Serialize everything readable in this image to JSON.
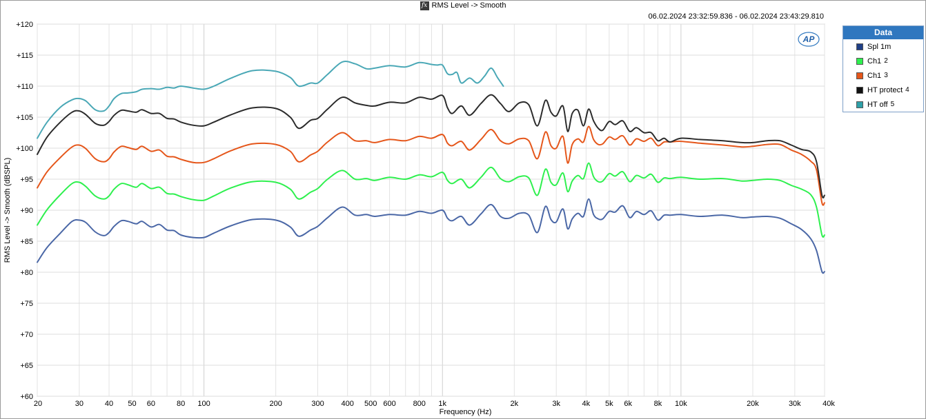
{
  "window": {
    "title": "RMS Level -> Smooth",
    "time_range": "06.02.2024 23:32:59.836 - 06.02.2024 23:43:29.810",
    "logo": "AP"
  },
  "legend": {
    "header": "Data",
    "items": [
      {
        "name": "Spl 1m",
        "num": "",
        "color": "#1f3f86"
      },
      {
        "name": "Ch1",
        "num": "2",
        "color": "#2ef04e"
      },
      {
        "name": "Ch1",
        "num": "3",
        "color": "#e5561a"
      },
      {
        "name": "HT protect",
        "num": "4",
        "color": "#111111"
      },
      {
        "name": "HT off",
        "num": "5",
        "color": "#2ea0a8"
      }
    ]
  },
  "chart_data": {
    "type": "line",
    "title": "RMS Level -> Smooth",
    "xlabel": "Frequency (Hz)",
    "ylabel": "RMS Level -> Smooth (dBSPL)",
    "x_scale": "log",
    "xlim": [
      20,
      40000
    ],
    "ylim": [
      60,
      120
    ],
    "grid": true,
    "legend_position": "right",
    "y_ticks": [
      "+60",
      "+65",
      "+70",
      "+75",
      "+80",
      "+85",
      "+90",
      "+95",
      "+100",
      "+105",
      "+110",
      "+115",
      "+120"
    ],
    "x_ticks": [
      {
        "v": 20,
        "label": "20"
      },
      {
        "v": 30,
        "label": "30"
      },
      {
        "v": 40,
        "label": "40"
      },
      {
        "v": 50,
        "label": "50"
      },
      {
        "v": 60,
        "label": "60"
      },
      {
        "v": 80,
        "label": "80"
      },
      {
        "v": 100,
        "label": "100"
      },
      {
        "v": 200,
        "label": "200"
      },
      {
        "v": 300,
        "label": "300"
      },
      {
        "v": 400,
        "label": "400"
      },
      {
        "v": 500,
        "label": "500"
      },
      {
        "v": 600,
        "label": "600"
      },
      {
        "v": 800,
        "label": "800"
      },
      {
        "v": 1000,
        "label": "1k"
      },
      {
        "v": 2000,
        "label": "2k"
      },
      {
        "v": 3000,
        "label": "3k"
      },
      {
        "v": 4000,
        "label": "4k"
      },
      {
        "v": 5000,
        "label": "5k"
      },
      {
        "v": 6000,
        "label": "6k"
      },
      {
        "v": 8000,
        "label": "8k"
      },
      {
        "v": 10000,
        "label": "10k"
      },
      {
        "v": 20000,
        "label": "20k"
      },
      {
        "v": 30000,
        "label": "30k"
      },
      {
        "v": 40000,
        "label": "40k"
      }
    ],
    "series": [
      {
        "name": "Spl 1m",
        "color": "#4a67a6",
        "x": [
          20,
          22,
          25,
          28,
          30,
          32,
          35,
          38,
          40,
          42,
          45,
          48,
          52,
          55,
          60,
          65,
          70,
          75,
          80,
          90,
          100,
          110,
          130,
          160,
          200,
          230,
          250,
          280,
          300,
          330,
          380,
          430,
          480,
          520,
          600,
          700,
          800,
          900,
          1000,
          1050,
          1100,
          1200,
          1300,
          1450,
          1600,
          1750,
          1900,
          2100,
          2300,
          2500,
          2700,
          2850,
          3000,
          3200,
          3350,
          3500,
          3700,
          3900,
          4100,
          4300,
          4500,
          4700,
          5000,
          5300,
          5700,
          6100,
          6500,
          7000,
          7500,
          8000,
          8500,
          9000,
          10000,
          12000,
          15000,
          18000,
          20000,
          23000,
          26000,
          29000,
          32000,
          35000,
          37000,
          39000,
          40000
        ],
        "y": [
          81.6,
          84.0,
          86.3,
          88.2,
          88.4,
          88.0,
          86.5,
          85.9,
          86.4,
          87.4,
          88.3,
          88.2,
          87.8,
          88.2,
          87.3,
          87.7,
          86.8,
          86.7,
          86.0,
          85.6,
          85.6,
          86.3,
          87.5,
          88.5,
          88.4,
          87.3,
          85.8,
          86.8,
          87.4,
          88.8,
          90.5,
          89.2,
          89.3,
          89.0,
          89.3,
          89.2,
          89.8,
          89.5,
          90.0,
          88.7,
          88.3,
          89.0,
          87.6,
          89.4,
          90.9,
          89.0,
          88.7,
          89.5,
          89.2,
          86.4,
          90.6,
          88.5,
          88.1,
          90.2,
          87.0,
          88.6,
          89.5,
          89.0,
          91.8,
          89.3,
          88.6,
          88.6,
          89.8,
          89.7,
          90.7,
          88.8,
          89.8,
          89.3,
          89.9,
          88.4,
          89.2,
          89.2,
          89.3,
          89.0,
          89.2,
          88.8,
          88.9,
          89.0,
          88.7,
          87.8,
          86.9,
          85.4,
          83.5,
          80.1,
          80.1
        ]
      },
      {
        "name": "Ch1 2",
        "color": "#2ef04e",
        "x": [
          20,
          22,
          25,
          28,
          30,
          32,
          35,
          38,
          40,
          42,
          45,
          48,
          52,
          55,
          60,
          65,
          70,
          75,
          80,
          90,
          100,
          110,
          130,
          160,
          200,
          230,
          250,
          280,
          300,
          330,
          380,
          430,
          480,
          520,
          600,
          700,
          800,
          900,
          1000,
          1050,
          1100,
          1200,
          1300,
          1450,
          1600,
          1750,
          1900,
          2100,
          2300,
          2500,
          2700,
          2850,
          3000,
          3200,
          3350,
          3500,
          3700,
          3900,
          4100,
          4300,
          4500,
          4700,
          5000,
          5300,
          5700,
          6100,
          6500,
          7000,
          7500,
          8000,
          8500,
          9000,
          10000,
          12000,
          15000,
          18000,
          20000,
          23000,
          26000,
          29000,
          32000,
          35000,
          37000,
          39000,
          40000
        ],
        "y": [
          87.6,
          90.1,
          92.5,
          94.3,
          94.5,
          93.8,
          92.3,
          91.8,
          92.3,
          93.4,
          94.3,
          94.1,
          93.7,
          94.3,
          93.5,
          93.7,
          92.7,
          92.6,
          92.2,
          91.7,
          91.6,
          92.3,
          93.6,
          94.6,
          94.5,
          93.4,
          91.8,
          92.9,
          93.5,
          95.0,
          96.4,
          95.0,
          95.1,
          94.8,
          95.3,
          95.0,
          95.7,
          95.4,
          96.1,
          94.8,
          94.3,
          95.0,
          93.6,
          95.3,
          96.9,
          95.1,
          94.6,
          95.4,
          95.2,
          92.4,
          96.6,
          94.5,
          94.1,
          96.0,
          93.0,
          94.7,
          95.6,
          95.1,
          97.6,
          95.4,
          94.6,
          94.7,
          95.9,
          95.5,
          96.2,
          94.6,
          95.6,
          95.2,
          95.8,
          94.5,
          95.2,
          95.1,
          95.3,
          95.0,
          95.1,
          94.7,
          94.8,
          95.0,
          94.8,
          94.0,
          93.4,
          92.5,
          90.5,
          86.0,
          86.0
        ]
      },
      {
        "name": "Ch1 3",
        "color": "#e5561a",
        "x": [
          20,
          22,
          25,
          28,
          30,
          32,
          35,
          38,
          40,
          42,
          45,
          48,
          52,
          55,
          60,
          65,
          70,
          75,
          80,
          90,
          100,
          110,
          130,
          160,
          200,
          230,
          250,
          280,
          300,
          330,
          380,
          430,
          480,
          520,
          600,
          700,
          800,
          900,
          1000,
          1050,
          1100,
          1200,
          1300,
          1450,
          1600,
          1750,
          1900,
          2100,
          2300,
          2500,
          2700,
          2850,
          3000,
          3200,
          3350,
          3500,
          3700,
          3900,
          4100,
          4300,
          4500,
          4700,
          5000,
          5300,
          5700,
          6100,
          6500,
          7000,
          7500,
          8000,
          8500,
          9000,
          10000,
          12000,
          15000,
          18000,
          20000,
          23000,
          26000,
          29000,
          32000,
          35000,
          37000,
          39000,
          40000
        ],
        "y": [
          93.6,
          96.2,
          98.5,
          100.2,
          100.5,
          99.9,
          98.3,
          97.8,
          98.3,
          99.4,
          100.3,
          100.1,
          99.8,
          100.3,
          99.5,
          99.7,
          98.7,
          98.6,
          98.2,
          97.7,
          97.7,
          98.3,
          99.6,
          100.7,
          100.6,
          99.5,
          97.8,
          98.9,
          99.5,
          101.0,
          102.5,
          101.2,
          101.2,
          100.9,
          101.4,
          101.2,
          101.9,
          101.6,
          102.2,
          100.8,
          100.4,
          101.1,
          99.7,
          101.4,
          103.0,
          101.2,
          100.7,
          101.5,
          101.2,
          98.3,
          102.6,
          100.4,
          100.0,
          101.9,
          97.6,
          100.6,
          101.5,
          101.0,
          103.5,
          101.4,
          100.6,
          100.7,
          101.8,
          101.4,
          102.0,
          100.5,
          101.5,
          101.1,
          101.6,
          100.4,
          101.0,
          101.0,
          101.1,
          100.8,
          100.5,
          100.2,
          100.3,
          100.6,
          100.6,
          99.7,
          99.0,
          97.9,
          96.5,
          91.2,
          91.2
        ]
      },
      {
        "name": "HT protect 4",
        "color": "#2b2b2b",
        "x": [
          20,
          22,
          25,
          28,
          30,
          32,
          35,
          38,
          40,
          42,
          45,
          48,
          52,
          55,
          60,
          65,
          70,
          75,
          80,
          90,
          100,
          110,
          130,
          160,
          200,
          230,
          250,
          280,
          300,
          330,
          380,
          430,
          480,
          520,
          600,
          700,
          800,
          900,
          1000,
          1050,
          1100,
          1200,
          1300,
          1450,
          1600,
          1750,
          1900,
          2100,
          2300,
          2500,
          2700,
          2850,
          3000,
          3200,
          3350,
          3500,
          3700,
          3900,
          4100,
          4300,
          4500,
          4700,
          5000,
          5300,
          5700,
          6100,
          6500,
          7000,
          7500,
          8000,
          8500,
          9000,
          10000,
          12000,
          15000,
          18000,
          20000,
          23000,
          26000,
          29000,
          32000,
          35000,
          37000,
          39000,
          40000
        ],
        "y": [
          99.0,
          101.8,
          104.2,
          105.8,
          106.0,
          105.4,
          104.0,
          103.7,
          104.3,
          105.3,
          106.1,
          106.0,
          105.8,
          106.2,
          105.6,
          105.6,
          104.8,
          104.7,
          104.2,
          103.7,
          103.6,
          104.2,
          105.4,
          106.5,
          106.4,
          105.0,
          103.2,
          104.5,
          104.8,
          106.3,
          108.2,
          107.3,
          106.9,
          106.8,
          107.4,
          107.3,
          108.2,
          107.9,
          108.5,
          106.5,
          105.6,
          106.8,
          105.3,
          107.2,
          108.6,
          107.2,
          105.9,
          107.3,
          107.0,
          103.6,
          107.7,
          105.8,
          105.2,
          106.8,
          102.7,
          105.6,
          106.1,
          103.6,
          106.3,
          104.4,
          103.2,
          102.9,
          104.3,
          103.8,
          104.4,
          102.7,
          103.3,
          102.5,
          102.5,
          101.2,
          101.6,
          101.0,
          101.6,
          101.4,
          101.2,
          100.9,
          100.9,
          101.2,
          101.2,
          100.5,
          99.8,
          99.4,
          97.8,
          92.4,
          92.4
        ]
      },
      {
        "name": "HT off 5",
        "color": "#4aa8b6",
        "x": [
          20,
          22,
          25,
          28,
          30,
          32,
          35,
          38,
          40,
          42,
          45,
          48,
          52,
          55,
          60,
          65,
          70,
          75,
          80,
          90,
          100,
          110,
          130,
          160,
          200,
          230,
          250,
          280,
          300,
          330,
          380,
          430,
          480,
          520,
          600,
          700,
          800,
          900,
          950,
          1000,
          1050,
          1100,
          1150,
          1200,
          1300,
          1400,
          1500,
          1600,
          1700,
          1800
        ],
        "y": [
          101.6,
          104.2,
          106.6,
          107.8,
          108.0,
          107.6,
          106.2,
          106.0,
          106.8,
          108.0,
          108.8,
          108.9,
          109.1,
          109.5,
          109.6,
          109.5,
          109.8,
          109.7,
          110.0,
          109.7,
          109.5,
          110.0,
          111.3,
          112.5,
          112.4,
          111.4,
          110.0,
          110.5,
          110.5,
          111.9,
          113.9,
          113.6,
          112.8,
          112.9,
          113.3,
          113.1,
          113.8,
          113.5,
          113.4,
          113.4,
          112.0,
          111.9,
          112.2,
          110.5,
          111.3,
          110.5,
          111.6,
          112.9,
          111.4,
          110.0
        ]
      }
    ]
  }
}
